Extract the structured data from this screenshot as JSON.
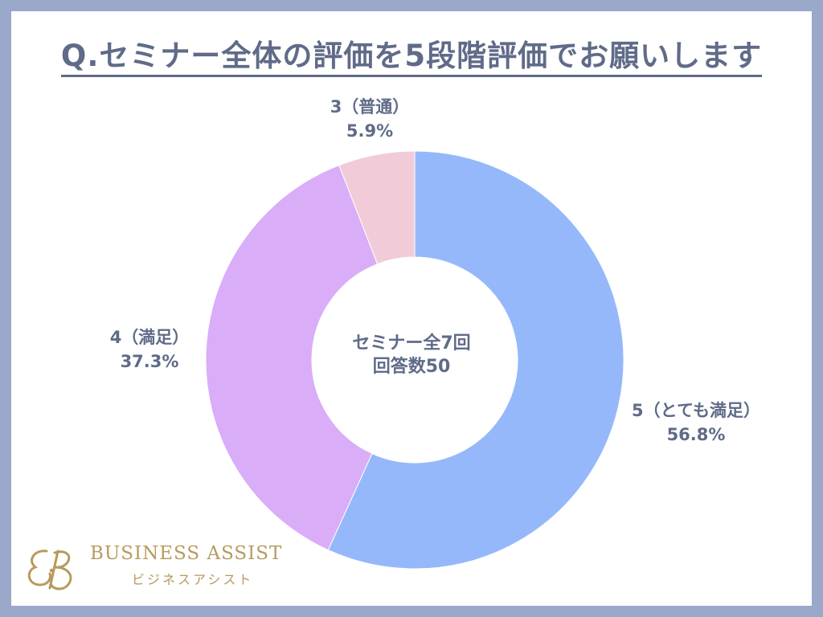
{
  "title": "Q.セミナー全体の評価を5段階評価でお願いします",
  "chart_data": {
    "type": "pie",
    "title": "Q.セミナー全体の評価を5段階評価でお願いします",
    "center_text": [
      "セミナー全7回",
      "回答数50"
    ],
    "slices": [
      {
        "label": "5（とても満足）",
        "value": 56.8,
        "value_label": "56.8%",
        "color": "#95b8fb"
      },
      {
        "label": "4（満足）",
        "value": 37.3,
        "value_label": "37.3%",
        "color": "#d9adf7"
      },
      {
        "label": "3（普通）",
        "value": 5.9,
        "value_label": "5.9%",
        "color": "#f2cbd8"
      }
    ]
  },
  "logo": {
    "text": "BUSINESS ASSIST",
    "subtext": "ビジネスアシスト",
    "color": "#b79a5c"
  }
}
